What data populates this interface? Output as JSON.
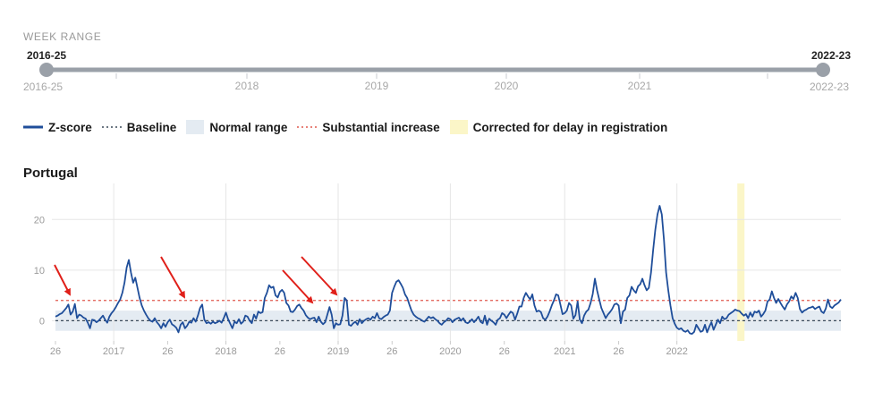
{
  "week_range": {
    "title": "WEEK RANGE",
    "selected_start": "2016-25",
    "selected_end": "2022-23",
    "min_label": "2016-25",
    "max_label": "2022-23",
    "year_labels": [
      "2018",
      "2019",
      "2020",
      "2021"
    ],
    "track_color": "#9aa0a8",
    "handle_color": "#9aa0a8"
  },
  "legend": [
    {
      "label": "Z-score",
      "kind": "line",
      "color": "#1f4e9a"
    },
    {
      "label": "Baseline",
      "kind": "dotted",
      "color": "#3b4a5a"
    },
    {
      "label": "Normal range",
      "kind": "box",
      "color": "#e4ebf2"
    },
    {
      "label": "Substantial increase",
      "kind": "dotted",
      "color": "#e05a4e"
    },
    {
      "label": "Corrected for delay in registration",
      "kind": "box",
      "color": "#fbf6c8"
    }
  ],
  "chart_title": "Portugal",
  "chart_data": {
    "type": "line",
    "title": "Portugal",
    "xlabel": "",
    "ylabel": "",
    "ylim": [
      -4,
      25
    ],
    "yticks": [
      0,
      10,
      20
    ],
    "x_tick_labels": [
      "26",
      "2017",
      "26",
      "2018",
      "26",
      "2019",
      "26",
      "2020",
      "26",
      "2021",
      "26",
      "2022"
    ],
    "baseline": 0,
    "normal_range": [
      -2,
      2
    ],
    "substantial_increase": 4,
    "corrected_region": {
      "from_week_index": 316,
      "to_week_index": 322
    },
    "x_start": "2016-W26",
    "x_step": "1 week",
    "series": [
      {
        "name": "Z-score",
        "color": "#1f4e9a",
        "values": [
          0.8,
          1.0,
          1.3,
          1.5,
          2.0,
          2.5,
          3.2,
          1.2,
          1.8,
          3.3,
          0.5,
          1.2,
          1.0,
          0.6,
          0.4,
          -0.4,
          -1.5,
          0.2,
          0.1,
          -0.3,
          0.0,
          0.5,
          1.0,
          0.2,
          -0.4,
          0.8,
          1.5,
          2.0,
          2.7,
          3.5,
          4.2,
          5.5,
          7.5,
          10.5,
          12.0,
          9.5,
          7.5,
          8.5,
          6.5,
          4.5,
          3.0,
          2.0,
          1.2,
          0.5,
          0.0,
          -0.2,
          0.5,
          -0.3,
          -0.8,
          -1.5,
          -0.5,
          -1.2,
          -0.3,
          0.2,
          -0.7,
          -1.0,
          -1.4,
          -2.3,
          -0.8,
          -0.3,
          -1.5,
          -1.0,
          -0.2,
          -0.4,
          0.5,
          -0.2,
          1.0,
          2.5,
          3.2,
          0.2,
          -0.5,
          -0.3,
          -0.6,
          -0.2,
          -0.5,
          -0.3,
          0.0,
          -0.4,
          0.5,
          1.6,
          0.3,
          -0.6,
          -1.5,
          -0.2,
          -0.5,
          0.3,
          -0.6,
          -0.2,
          1.0,
          0.8,
          0.0,
          -0.5,
          1.2,
          0.4,
          1.8,
          1.5,
          1.7,
          4.5,
          5.5,
          7.0,
          6.5,
          6.7,
          5.0,
          4.6,
          5.7,
          6.1,
          5.5,
          3.5,
          3.0,
          1.8,
          1.7,
          2.2,
          2.9,
          3.2,
          2.5,
          2.0,
          1.1,
          0.6,
          0.3,
          0.5,
          0.6,
          -0.3,
          0.8,
          -0.2,
          -0.7,
          -0.3,
          1.2,
          2.7,
          1.2,
          -1.5,
          -0.5,
          -0.8,
          -0.7,
          1.0,
          4.5,
          4.0,
          -0.8,
          -1.0,
          -0.5,
          -0.2,
          -0.8,
          0.3,
          -0.5,
          0.0,
          0.3,
          0.5,
          0.2,
          0.8,
          0.5,
          1.5,
          0.5,
          0.3,
          0.7,
          1.0,
          1.2,
          2.0,
          5.5,
          6.7,
          7.7,
          8.0,
          7.3,
          6.5,
          5.2,
          4.5,
          3.2,
          2.0,
          1.2,
          0.8,
          0.5,
          0.3,
          0.0,
          -0.2,
          0.3,
          0.8,
          0.5,
          0.7,
          0.3,
          0.0,
          -0.5,
          -0.8,
          -0.3,
          0.0,
          0.5,
          0.3,
          -0.3,
          0.2,
          0.4,
          0.6,
          0.0,
          0.5,
          -0.3,
          -0.5,
          -0.2,
          0.3,
          -0.3,
          0.2,
          0.8,
          -0.2,
          -0.5,
          1.0,
          -0.8,
          0.4,
          0.0,
          -0.3,
          -0.8,
          0.2,
          0.5,
          1.5,
          1.2,
          0.5,
          1.2,
          1.8,
          1.5,
          0.2,
          1.4,
          2.8,
          2.8,
          4.5,
          5.5,
          4.8,
          4.2,
          5.2,
          3.0,
          1.8,
          2.0,
          1.7,
          0.5,
          0.2,
          0.8,
          1.8,
          3.0,
          4.0,
          5.2,
          5.0,
          3.2,
          1.3,
          1.5,
          2.0,
          3.5,
          3.0,
          0.4,
          1.1,
          3.8,
          0.2,
          -0.5,
          1.0,
          1.8,
          2.2,
          3.5,
          5.3,
          8.3,
          6.0,
          4.2,
          2.5,
          1.5,
          0.5,
          1.2,
          1.7,
          2.3,
          3.2,
          3.4,
          3.0,
          -0.5,
          1.8,
          2.2,
          4.5,
          5.0,
          6.7,
          6.0,
          5.5,
          6.8,
          7.2,
          8.3,
          7.0,
          6.0,
          6.5,
          9.5,
          14.0,
          18.0,
          21.0,
          22.7,
          21.0,
          16.0,
          9.5,
          6.0,
          3.0,
          0.5,
          -0.6,
          -1.4,
          -1.7,
          -1.5,
          -2.0,
          -2.2,
          -1.9,
          -2.5,
          -2.6,
          -2.2,
          -0.8,
          -1.5,
          -2.2,
          -2.0,
          -0.8,
          -2.3,
          -1.2,
          -0.3,
          -1.8,
          -0.8,
          0.2,
          -0.5,
          0.8,
          0.3,
          0.5,
          1.2,
          1.5,
          1.8,
          2.2,
          2.0,
          1.9,
          1.4,
          1.0,
          1.3,
          0.5,
          1.6,
          0.8,
          1.8,
          1.6,
          2.0,
          0.8,
          1.3,
          2.0,
          3.8,
          4.2,
          5.8,
          4.5,
          3.5,
          4.3,
          3.5,
          2.8,
          2.2,
          3.2,
          3.8,
          4.8,
          4.3,
          5.5,
          4.5,
          2.3,
          1.6,
          2.0,
          2.2,
          2.5,
          2.6,
          2.8,
          2.3,
          2.6,
          2.8,
          1.8,
          1.5,
          2.4,
          4.2,
          2.8,
          2.5,
          3.0,
          3.3,
          3.6,
          4.2
        ]
      }
    ]
  }
}
